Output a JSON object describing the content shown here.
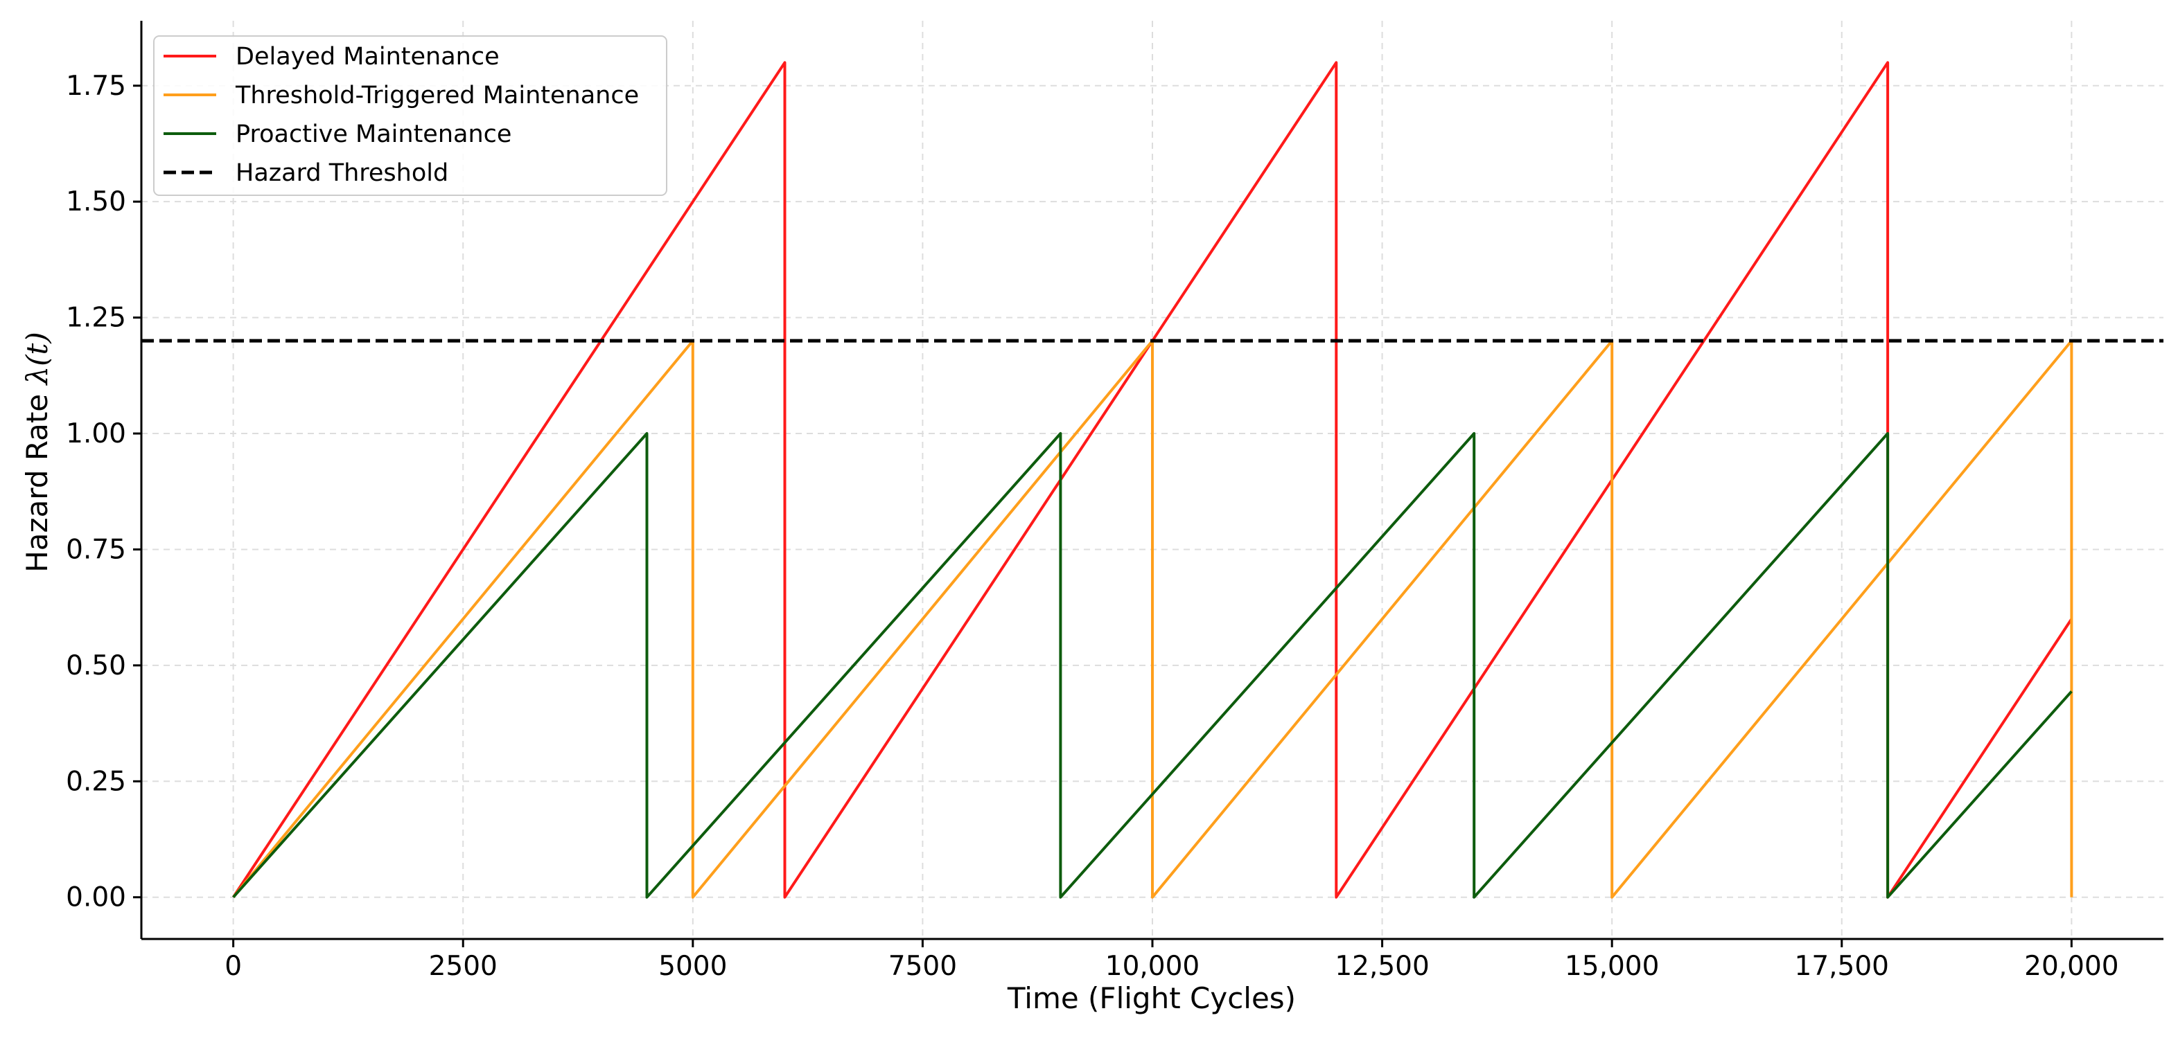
{
  "chart_data": {
    "type": "line",
    "xlabel": "Time (Flight Cycles)",
    "ylabel_prefix": "Hazard Rate ",
    "ylabel_math": "λ(t)",
    "xlim": [
      -1000,
      21000
    ],
    "ylim": [
      -0.09,
      1.89
    ],
    "grid": true,
    "legend_position": "upper-left",
    "x_ticks": [
      {
        "value": 0,
        "label": "0"
      },
      {
        "value": 2500,
        "label": "2500"
      },
      {
        "value": 5000,
        "label": "5000"
      },
      {
        "value": 7500,
        "label": "7500"
      },
      {
        "value": 10000,
        "label": "10,000"
      },
      {
        "value": 12500,
        "label": "12,500"
      },
      {
        "value": 15000,
        "label": "15,000"
      },
      {
        "value": 17500,
        "label": "17,500"
      },
      {
        "value": 20000,
        "label": "20,000"
      }
    ],
    "y_ticks": [
      {
        "value": 0,
        "label": "0.00"
      },
      {
        "value": 0.25,
        "label": "0.25"
      },
      {
        "value": 0.5,
        "label": "0.50"
      },
      {
        "value": 0.75,
        "label": "0.75"
      },
      {
        "value": 1.0,
        "label": "1.00"
      },
      {
        "value": 1.25,
        "label": "1.25"
      },
      {
        "value": 1.5,
        "label": "1.50"
      },
      {
        "value": 1.75,
        "label": "1.75"
      }
    ],
    "series": [
      {
        "name": "Delayed Maintenance",
        "color": "#ff1a1a",
        "dash": "solid",
        "points": [
          [
            0,
            0
          ],
          [
            6000,
            1.8
          ],
          [
            6000,
            0
          ],
          [
            12000,
            1.8
          ],
          [
            12000,
            0
          ],
          [
            18000,
            1.8
          ],
          [
            18000,
            0
          ],
          [
            20000,
            0.6
          ]
        ]
      },
      {
        "name": "Threshold-Triggered Maintenance",
        "color": "#ff9f1c",
        "dash": "solid",
        "points": [
          [
            0,
            0
          ],
          [
            5000,
            1.2
          ],
          [
            5000,
            0
          ],
          [
            10000,
            1.2
          ],
          [
            10000,
            0
          ],
          [
            15000,
            1.2
          ],
          [
            15000,
            0
          ],
          [
            20000,
            1.2
          ],
          [
            20000,
            0
          ]
        ]
      },
      {
        "name": "Proactive Maintenance",
        "color": "#0d5c0d",
        "dash": "solid",
        "points": [
          [
            0,
            0
          ],
          [
            4500,
            1.0
          ],
          [
            4500,
            0
          ],
          [
            9000,
            1.0
          ],
          [
            9000,
            0
          ],
          [
            13500,
            1.0
          ],
          [
            13500,
            0
          ],
          [
            18000,
            1.0
          ],
          [
            18000,
            0
          ],
          [
            20000,
            0.444
          ]
        ]
      },
      {
        "name": "Hazard Threshold",
        "color": "#000000",
        "dash": "dashed",
        "points": [
          [
            -1000,
            1.2
          ],
          [
            21000,
            1.2
          ]
        ]
      }
    ]
  }
}
